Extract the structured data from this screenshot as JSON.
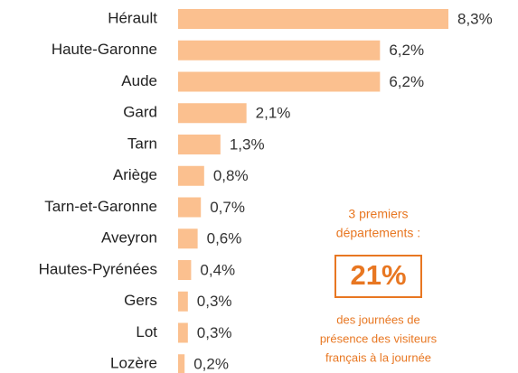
{
  "chart_data": {
    "type": "bar",
    "orientation": "horizontal",
    "categories": [
      "Hérault",
      "Haute-Garonne",
      "Aude",
      "Gard",
      "Tarn",
      "Ariège",
      "Tarn-et-Garonne",
      "Aveyron",
      "Hautes-Pyrénées",
      "Gers",
      "Lot",
      "Lozère"
    ],
    "values": [
      8.3,
      6.2,
      6.2,
      2.1,
      1.3,
      0.8,
      0.7,
      0.6,
      0.4,
      0.3,
      0.3,
      0.2
    ],
    "value_labels": [
      "8,3%",
      "6,2%",
      "6,2%",
      "2,1%",
      "1,3%",
      "0,8%",
      "0,7%",
      "0,6%",
      "0,4%",
      "0,3%",
      "0,3%",
      "0,2%"
    ],
    "color": "#fbc08f",
    "annotation": {
      "top": [
        "3 premiers",
        "départements :"
      ],
      "highlight": "21%",
      "bottom": [
        "des journées de",
        "présence des visiteurs",
        "français à la journée"
      ]
    }
  }
}
